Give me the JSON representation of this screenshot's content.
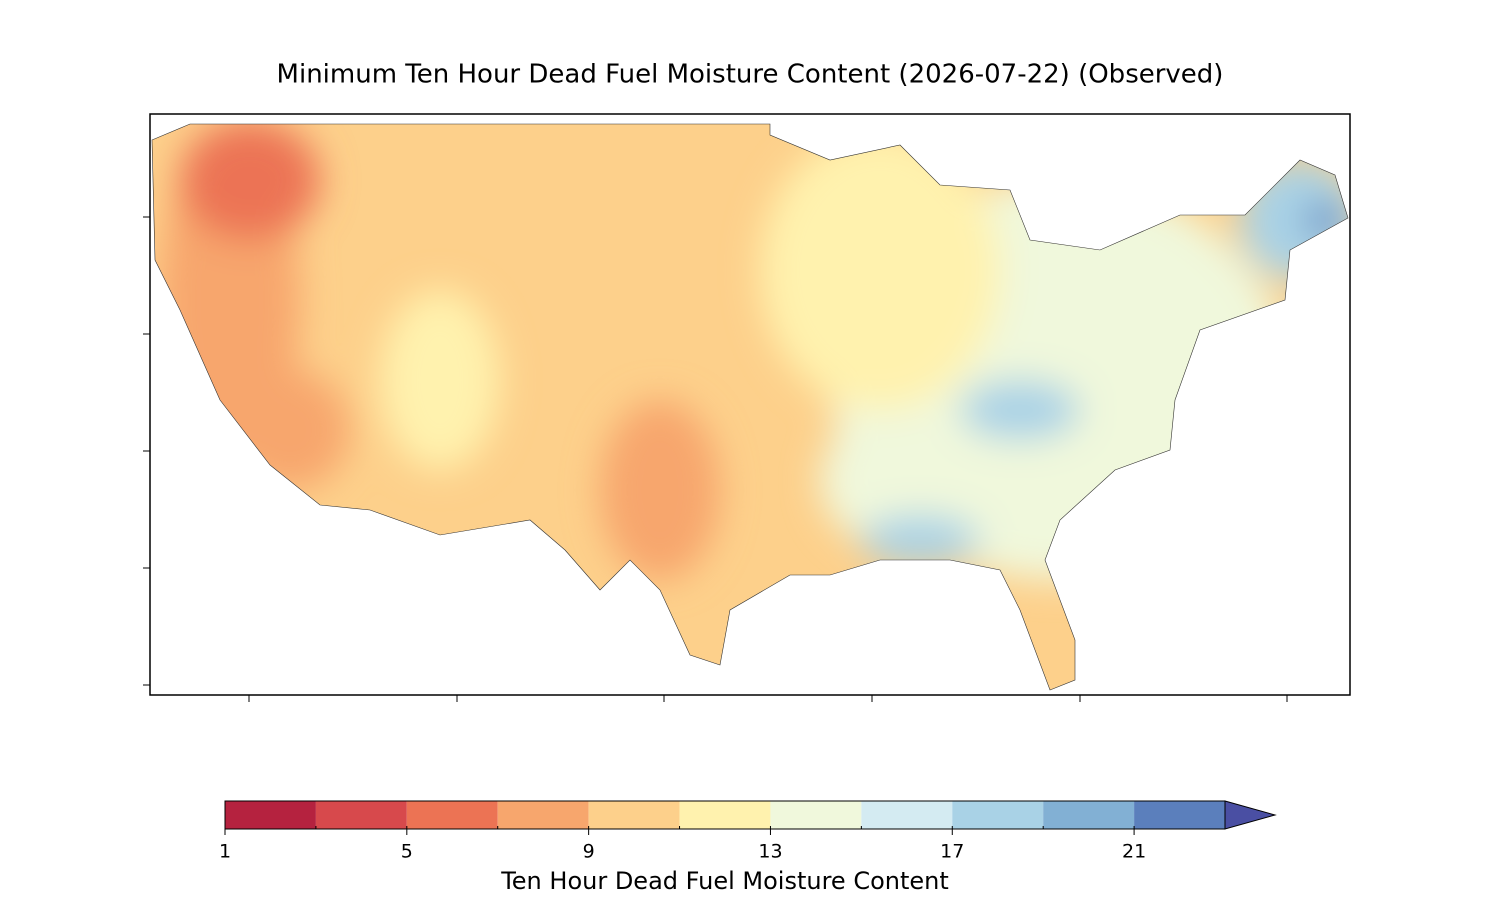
{
  "title": "Minimum Ten Hour Dead Fuel Moisture Content (2026-07-22) (Observed)",
  "colorbar": {
    "label": "Ten Hour Dead Fuel Moisture Content",
    "levels": [
      1,
      3,
      5,
      7,
      9,
      11,
      13,
      15,
      17,
      19,
      21,
      23
    ],
    "colors": [
      "#b5223f",
      "#d7494c",
      "#ec7354",
      "#f7a66d",
      "#fdd08b",
      "#fff2ae",
      "#f0f8dc",
      "#d4ebf2",
      "#a9d2e6",
      "#82b0d4",
      "#5b7fbc"
    ],
    "extend_color": "#4a4fa3",
    "ticks": [
      1,
      5,
      9,
      13,
      17,
      21
    ]
  }
}
